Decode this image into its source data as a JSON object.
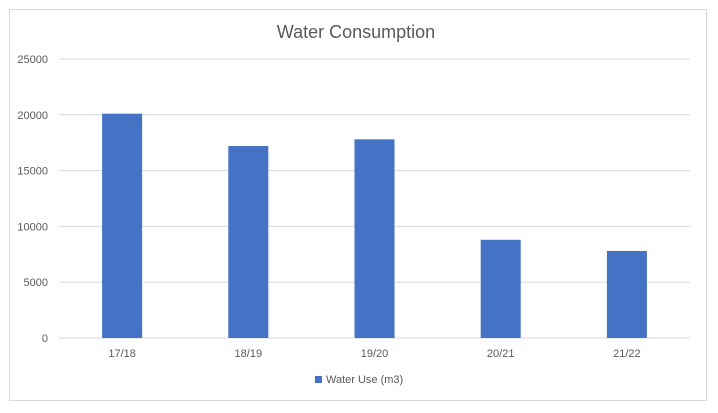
{
  "chart_data": {
    "type": "bar",
    "title": "Water Consumption",
    "xlabel": "",
    "ylabel": "",
    "categories": [
      "17/18",
      "18/19",
      "19/20",
      "20/21",
      "21/22"
    ],
    "series": [
      {
        "name": "Water Use (m3)",
        "values": [
          20100,
          17200,
          17800,
          8800,
          7800
        ],
        "color": "#4472c4"
      }
    ],
    "ylim": [
      0,
      25000
    ],
    "yticks": [
      "0",
      "5000",
      "10000",
      "15000",
      "20000",
      "25000"
    ],
    "grid": true,
    "legend_position": "bottom"
  }
}
